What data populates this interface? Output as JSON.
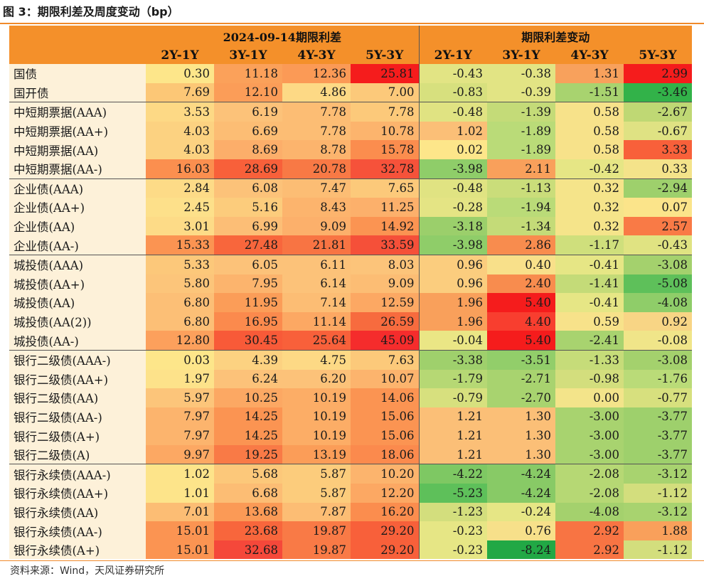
{
  "title": "图 3：期限利差及周度变动（bp）",
  "header": {
    "group1": "2024-09-14期限利差",
    "group2": "期限利差变动",
    "cols": [
      "2Y-1Y",
      "3Y-1Y",
      "4Y-3Y",
      "5Y-3Y",
      "2Y-1Y",
      "3Y-1Y",
      "4Y-3Y",
      "5Y-3Y"
    ]
  },
  "rows": [
    {
      "label": "国债",
      "values": [
        "0.30",
        "11.18",
        "12.36",
        "25.81",
        "-0.43",
        "-0.38",
        "1.31",
        "2.99"
      ],
      "colors": [
        "#fde68a",
        "#fba15a",
        "#fb9a56",
        "#f51c1c",
        "#e2e484",
        "#e2e484",
        "#f8a15c",
        "#f51c1c"
      ],
      "sep": false
    },
    {
      "label": "国开债",
      "values": [
        "7.69",
        "12.10",
        "4.86",
        "7.00",
        "-0.83",
        "-0.39",
        "-1.51",
        "-3.46"
      ],
      "colors": [
        "#fcc776",
        "#fb9d58",
        "#fdd985",
        "#fcc97a",
        "#d7e07e",
        "#e2e484",
        "#a8d36f",
        "#32b249"
      ],
      "sep": false
    },
    {
      "label": "中短期票据(AAA)",
      "values": [
        "3.53",
        "6.19",
        "7.78",
        "7.78"
      ],
      "colors": [
        "#fdd985",
        "#fcc279",
        "#fcbd74",
        "#fcc97a",
        "#e0e382",
        "#c4db78",
        "#f7e28a",
        "#bfd874"
      ],
      "values2": [
        "-0.48",
        "-1.39",
        "0.58",
        "-2.67"
      ],
      "sep": true
    },
    {
      "label": "中短期票据(AA+)",
      "values": [
        "4.03",
        "6.69",
        "7.78",
        "10.78"
      ],
      "colors": [
        "#fcd281",
        "#fcbd74",
        "#fcbd74",
        "#fcb46d",
        "#fbbf77",
        "#badb78",
        "#f7e28a",
        "#dfe283"
      ],
      "values2": [
        "1.02",
        "-1.89",
        "0.58",
        "-0.67"
      ],
      "sep": false
    },
    {
      "label": "中短期票据(AA)",
      "values": [
        "4.03",
        "8.69",
        "8.78",
        "15.78"
      ],
      "colors": [
        "#fcd281",
        "#fcae6a",
        "#fcb46d",
        "#fb8d4e",
        "#fde68a",
        "#badb78",
        "#f7e28a",
        "#f8603a"
      ],
      "values2": [
        "0.02",
        "-1.89",
        "0.58",
        "3.33"
      ],
      "sep": false
    },
    {
      "label": "中短期票据(AA-)",
      "values": [
        "16.03",
        "28.69",
        "20.78",
        "32.78"
      ],
      "colors": [
        "#fb8f4f",
        "#f8603a",
        "#f87945",
        "#f6523a",
        "#8fcd69",
        "#f9a05b",
        "#e6e685",
        "#f4e38a"
      ],
      "values2": [
        "-3.98",
        "2.11",
        "-0.42",
        "0.33"
      ],
      "sep": false
    },
    {
      "label": "企业债(AAA)",
      "values": [
        "2.84",
        "6.08",
        "7.47",
        "7.65"
      ],
      "colors": [
        "#fddb87",
        "#fcc279",
        "#fcbd74",
        "#fcc97a",
        "#e0e382",
        "#cadd7a",
        "#f5e48a",
        "#9ed06c"
      ],
      "values2": [
        "-0.48",
        "-1.13",
        "0.32",
        "-2.94"
      ],
      "sep": true
    },
    {
      "label": "企业债(AA+)",
      "values": [
        "2.45",
        "5.16",
        "8.43",
        "11.25"
      ],
      "colors": [
        "#fde08a",
        "#fccc7c",
        "#fcb46d",
        "#fcb06b",
        "#e4e484",
        "#badb78",
        "#f5e48a",
        "#fbe48a"
      ],
      "values2": [
        "-0.28",
        "-1.94",
        "0.32",
        "0.07"
      ],
      "sep": false
    },
    {
      "label": "企业债(AA)",
      "values": [
        "3.01",
        "6.99",
        "9.09",
        "14.92"
      ],
      "colors": [
        "#fddb87",
        "#fcbe76",
        "#fcb06b",
        "#fb9452",
        "#9bcf6b",
        "#c4db78",
        "#f5e48a",
        "#f97a46"
      ],
      "values2": [
        "-3.18",
        "-1.34",
        "0.32",
        "2.57"
      ],
      "sep": false
    },
    {
      "label": "企业债(AA-)",
      "values": [
        "15.33",
        "27.48",
        "21.81",
        "33.59"
      ],
      "colors": [
        "#fb9452",
        "#f8663c",
        "#f87443",
        "#f55039",
        "#8fcd69",
        "#f88c4e",
        "#cfdf7c",
        "#e0e382"
      ],
      "values2": [
        "-3.98",
        "2.86",
        "-1.17",
        "-0.43"
      ],
      "sep": false
    },
    {
      "label": "城投债(AAA)",
      "values": [
        "5.33",
        "6.05",
        "6.11",
        "8.03"
      ],
      "colors": [
        "#fcc87a",
        "#fcc279",
        "#fcc279",
        "#fcc47a",
        "#fbcd7e",
        "#f8e08a",
        "#e6e685",
        "#a4d16d"
      ],
      "values2": [
        "0.96",
        "0.40",
        "-0.41",
        "-3.08"
      ],
      "sep": true
    },
    {
      "label": "城投债(AA+)",
      "values": [
        "5.80",
        "7.95",
        "6.14",
        "9.09"
      ],
      "colors": [
        "#fcc57a",
        "#fcb46d",
        "#fcc279",
        "#fcbd74",
        "#fbcd7e",
        "#f88c4e",
        "#c4db78",
        "#5ec05a"
      ],
      "values2": [
        "0.96",
        "2.40",
        "-1.41",
        "-5.08"
      ],
      "sep": false
    },
    {
      "label": "城投债(AA)",
      "values": [
        "6.80",
        "11.95",
        "7.14",
        "12.59"
      ],
      "colors": [
        "#fcbf76",
        "#fb9d58",
        "#fcbd74",
        "#fca863",
        "#f9a05b",
        "#f51c1c",
        "#e6e685",
        "#8fcd69"
      ],
      "values2": [
        "1.96",
        "5.40",
        "-0.41",
        "-4.08"
      ],
      "sep": false
    },
    {
      "label": "城投债(AA(2))",
      "values": [
        "6.80",
        "16.95",
        "11.14",
        "26.59"
      ],
      "colors": [
        "#fcbf76",
        "#fb8a4d",
        "#fca863",
        "#f76b3e",
        "#f9a05b",
        "#f83e2f",
        "#f7e28a",
        "#f8d585"
      ],
      "values2": [
        "1.96",
        "4.40",
        "0.59",
        "0.92"
      ],
      "sep": false
    },
    {
      "label": "城投债(AA-)",
      "values": [
        "12.80",
        "30.45",
        "25.64",
        "45.09"
      ],
      "colors": [
        "#fca05c",
        "#f85a38",
        "#f8603a",
        "#f52c2c",
        "#eae685",
        "#f51c1c",
        "#a8d36f",
        "#f0e589"
      ],
      "values2": [
        "-0.04",
        "5.40",
        "-2.41",
        "-0.08"
      ],
      "sep": false
    },
    {
      "label": "银行二级债(AAA-)",
      "values": [
        "0.03",
        "4.39",
        "4.75",
        "7.63"
      ],
      "colors": [
        "#fde68a",
        "#fcd281",
        "#fdd985",
        "#fcc97a",
        "#9fd06c",
        "#92ce6a",
        "#c6dc79",
        "#a4d16d"
      ],
      "values2": [
        "-3.38",
        "-3.51",
        "-1.33",
        "-3.08"
      ],
      "sep": true
    },
    {
      "label": "银行二级债(AA+)",
      "values": [
        "1.97",
        "6.24",
        "6.20",
        "10.07"
      ],
      "colors": [
        "#fde28a",
        "#fcc279",
        "#fcc279",
        "#fcb46d",
        "#b6d874",
        "#a8d36f",
        "#d3de7d",
        "#badb78"
      ],
      "values2": [
        "-1.79",
        "-2.71",
        "-0.98",
        "-1.76"
      ],
      "sep": false
    },
    {
      "label": "银行二级债(AA)",
      "values": [
        "5.97",
        "10.25",
        "10.19",
        "14.06"
      ],
      "colors": [
        "#fcc57a",
        "#fca863",
        "#fcad66",
        "#fb9452",
        "#d7e07e",
        "#a8d36f",
        "#f3e48a",
        "#d7e07e"
      ],
      "values2": [
        "-0.79",
        "-2.70",
        "0.00",
        "-0.77"
      ],
      "sep": false
    },
    {
      "label": "银行二级债(AA-)",
      "values": [
        "7.97",
        "14.25",
        "10.19",
        "15.06"
      ],
      "colors": [
        "#fcb46d",
        "#fb9452",
        "#fcad66",
        "#fb9452",
        "#fbbf77",
        "#fbbf77",
        "#a8d36f",
        "#9ed06c"
      ],
      "values2": [
        "1.21",
        "1.30",
        "-3.00",
        "-3.77"
      ],
      "sep": false
    },
    {
      "label": "银行二级债(A+)",
      "values": [
        "7.97",
        "14.25",
        "10.19",
        "15.06"
      ],
      "colors": [
        "#fcb46d",
        "#fb9452",
        "#fcad66",
        "#fb9452",
        "#fbbf77",
        "#fbbf77",
        "#a8d36f",
        "#9ed06c"
      ],
      "values2": [
        "1.21",
        "1.30",
        "-3.00",
        "-3.77"
      ],
      "sep": false
    },
    {
      "label": "银行二级债(A)",
      "values": [
        "9.97",
        "19.25",
        "13.19",
        "18.06"
      ],
      "colors": [
        "#fca863",
        "#f97a46",
        "#fb9d58",
        "#fb8a4d",
        "#fbbf77",
        "#fbbf77",
        "#a8d36f",
        "#9ed06c"
      ],
      "values2": [
        "1.21",
        "1.30",
        "-3.00",
        "-3.77"
      ],
      "sep": false
    },
    {
      "label": "银行永续债(AAA-)",
      "values": [
        "1.02",
        "5.68",
        "5.87",
        "10.20"
      ],
      "colors": [
        "#fde48a",
        "#fcc87a",
        "#fccc7c",
        "#fcb46d",
        "#7ec863",
        "#88ca66",
        "#b6d874",
        "#a8d36f"
      ],
      "values2": [
        "-4.22",
        "-4.24",
        "-2.08",
        "-3.12"
      ],
      "sep": true
    },
    {
      "label": "银行永续债(AA+)",
      "values": [
        "1.01",
        "6.68",
        "5.87",
        "12.20"
      ],
      "colors": [
        "#fde48a",
        "#fcbd74",
        "#fccc7c",
        "#fca863",
        "#5ec05a",
        "#88ca66",
        "#b6d874",
        "#d3de7d"
      ],
      "values2": [
        "-5.23",
        "-4.24",
        "-2.08",
        "-1.12"
      ],
      "sep": false
    },
    {
      "label": "银行永续债(AA)",
      "values": [
        "7.01",
        "13.68",
        "7.87",
        "16.20"
      ],
      "colors": [
        "#fcbd74",
        "#fb9a56",
        "#fcbd74",
        "#fb8d4e",
        "#d3de7d",
        "#e6e685",
        "#a4d16d",
        "#a8d36f"
      ],
      "values2": [
        "-1.23",
        "-0.24",
        "-4.08",
        "-3.12"
      ],
      "sep": false
    },
    {
      "label": "银行永续债(AA-)",
      "values": [
        "15.01",
        "23.68",
        "19.87",
        "29.20"
      ],
      "colors": [
        "#fb9452",
        "#f8663c",
        "#f97a46",
        "#f8603a",
        "#e6e685",
        "#f7e08a",
        "#f87443",
        "#f9a05b"
      ],
      "values2": [
        "-0.23",
        "0.76",
        "2.92",
        "1.88"
      ],
      "sep": false
    },
    {
      "label": "银行永续债(A+)",
      "values": [
        "15.01",
        "32.68",
        "19.87",
        "29.20"
      ],
      "colors": [
        "#fb9452",
        "#f5483a",
        "#f97a46",
        "#f8603a",
        "#e6e685",
        "#22a845",
        "#f87443",
        "#d3de7d"
      ],
      "values2": [
        "-0.23",
        "-8.24",
        "2.92",
        "-1.12"
      ],
      "sep": false
    }
  ],
  "source": "资料来源：Wind，天风证券研究所"
}
